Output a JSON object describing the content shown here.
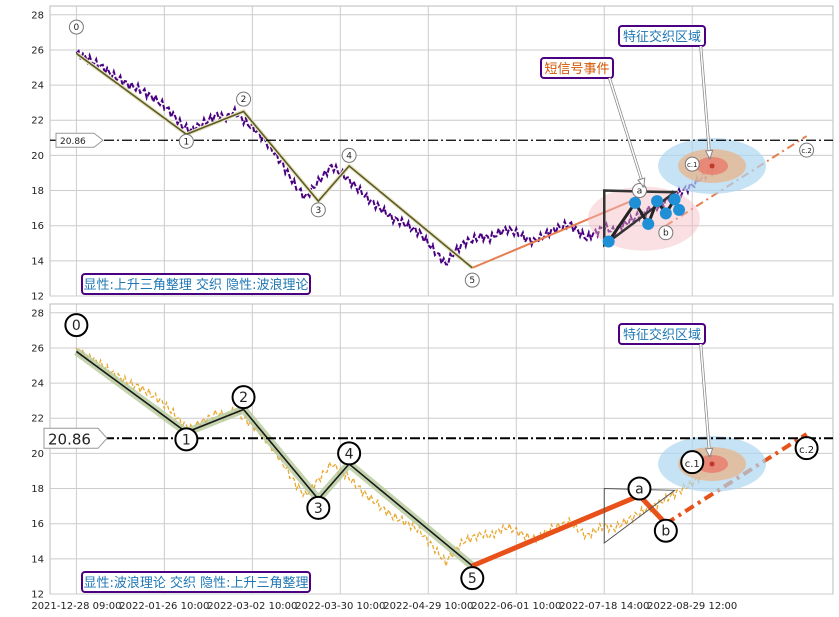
{
  "chart_data": [
    {
      "type": "line",
      "panel": "top",
      "ylim": [
        12,
        28.5
      ],
      "yticks": [
        12,
        14,
        16,
        18,
        20,
        22,
        24,
        26,
        28
      ],
      "grid": true,
      "hline_value": 20.86,
      "hline_label": "20.86",
      "caption": "显性:上升三角整理 交织 隐性:波浪理论",
      "caption_color": "#1f77b4",
      "price_color": "#4b0082",
      "price_series": [
        [
          0,
          25.8
        ],
        [
          2,
          25.6
        ],
        [
          4,
          25.3
        ],
        [
          6,
          25.0
        ],
        [
          8,
          24.6
        ],
        [
          10,
          24.3
        ],
        [
          12,
          24.0
        ],
        [
          14,
          23.8
        ],
        [
          16,
          23.5
        ],
        [
          18,
          23.2
        ],
        [
          20,
          22.8
        ],
        [
          22,
          22.3
        ],
        [
          24,
          21.7
        ],
        [
          26,
          21.4
        ],
        [
          28,
          21.7
        ],
        [
          30,
          22.0
        ],
        [
          32,
          22.3
        ],
        [
          34,
          22.1
        ],
        [
          36,
          22.5
        ],
        [
          38,
          22.0
        ],
        [
          40,
          21.6
        ],
        [
          42,
          21.1
        ],
        [
          44,
          20.5
        ],
        [
          46,
          19.8
        ],
        [
          48,
          19.0
        ],
        [
          50,
          18.2
        ],
        [
          52,
          17.6
        ],
        [
          54,
          18.2
        ],
        [
          56,
          18.8
        ],
        [
          58,
          19.4
        ],
        [
          60,
          19.0
        ],
        [
          62,
          18.6
        ],
        [
          64,
          18.1
        ],
        [
          66,
          17.6
        ],
        [
          68,
          17.2
        ],
        [
          70,
          16.8
        ],
        [
          72,
          16.4
        ],
        [
          74,
          16.2
        ],
        [
          76,
          15.9
        ],
        [
          78,
          15.6
        ],
        [
          80,
          15.0
        ],
        [
          82,
          14.4
        ],
        [
          84,
          13.8
        ],
        [
          86,
          14.5
        ],
        [
          88,
          15.0
        ],
        [
          90,
          15.2
        ],
        [
          92,
          15.4
        ],
        [
          94,
          15.3
        ],
        [
          96,
          15.6
        ],
        [
          98,
          15.8
        ],
        [
          100,
          15.6
        ],
        [
          102,
          15.3
        ],
        [
          104,
          15.1
        ],
        [
          106,
          15.4
        ],
        [
          108,
          15.7
        ],
        [
          110,
          15.9
        ],
        [
          112,
          16.1
        ],
        [
          114,
          15.7
        ],
        [
          116,
          15.3
        ],
        [
          118,
          15.6
        ],
        [
          120,
          15.9
        ],
        [
          122,
          15.7
        ],
        [
          124,
          16.0
        ],
        [
          126,
          16.3
        ],
        [
          128,
          16.6
        ],
        [
          130,
          16.9
        ],
        [
          132,
          17.1
        ],
        [
          134,
          17.4
        ],
        [
          136,
          17.7
        ],
        [
          138,
          18.0
        ],
        [
          140,
          18.3
        ],
        [
          142,
          18.7
        ],
        [
          144,
          19.1
        ],
        [
          146,
          19.3
        ]
      ],
      "wave_lines": [
        {
          "name": "wave",
          "points": [
            [
              0,
              25.8
            ],
            [
              25,
              21.2
            ],
            [
              38,
              22.5
            ],
            [
              55,
              17.4
            ],
            [
              62,
              19.4
            ],
            [
              90,
              13.6
            ]
          ],
          "color": "#5a5a2a"
        }
      ],
      "projection": {
        "points": [
          [
            90,
            13.6
          ],
          [
            128,
            17.6
          ],
          [
            134,
            16.0
          ],
          [
            166,
            21.1
          ]
        ],
        "color": "#e67e50"
      },
      "wave_labels": [
        {
          "label": "0",
          "x": 0,
          "y": 27.3
        },
        {
          "label": "1",
          "x": 25,
          "y": 20.8
        },
        {
          "label": "2",
          "x": 38,
          "y": 23.2
        },
        {
          "label": "3",
          "x": 55,
          "y": 16.9
        },
        {
          "label": "4",
          "x": 62,
          "y": 20.0
        },
        {
          "label": "5",
          "x": 90,
          "y": 12.9
        },
        {
          "label": "a",
          "x": 128,
          "y": 18.0
        },
        {
          "label": "b",
          "x": 134,
          "y": 15.6
        },
        {
          "label": "c.1",
          "x": 140,
          "y": 19.5
        },
        {
          "label": "c.2",
          "x": 166,
          "y": 20.3
        }
      ],
      "triangle": [
        [
          120,
          18.0
        ],
        [
          136,
          17.9
        ],
        [
          120,
          14.9
        ]
      ],
      "signal_points": [
        [
          121,
          15.1
        ],
        [
          127,
          17.3
        ],
        [
          130,
          16.1
        ],
        [
          132,
          17.4
        ],
        [
          134,
          16.7
        ],
        [
          136,
          17.5
        ],
        [
          137,
          16.9
        ]
      ],
      "annotations": [
        {
          "text": "短信号事件",
          "color": "#d35400",
          "target": [
            129,
            18.2
          ]
        },
        {
          "text": "特征交织区域",
          "color": "#1f77b4",
          "target": [
            144,
            19.8
          ]
        }
      ]
    },
    {
      "type": "line",
      "panel": "bottom",
      "ylim": [
        12,
        28.5
      ],
      "yticks": [
        12,
        14,
        16,
        18,
        20,
        22,
        24,
        26,
        28
      ],
      "grid": true,
      "hline_value": 20.86,
      "hline_label": "20.86",
      "caption": "显性:波浪理论 交织 隐性:上升三角整理",
      "caption_color": "#1f77b4",
      "price_color": "#e8a830",
      "price_series": "same-as-top",
      "wave_lines": [
        {
          "name": "wave",
          "points": [
            [
              0,
              25.8
            ],
            [
              25,
              21.2
            ],
            [
              38,
              22.5
            ],
            [
              55,
              17.4
            ],
            [
              62,
              19.4
            ],
            [
              90,
              13.6
            ]
          ],
          "color": "#1a1a1a"
        }
      ],
      "projection": {
        "points": [
          [
            90,
            13.6
          ],
          [
            128,
            17.6
          ],
          [
            134,
            16.0
          ],
          [
            166,
            21.1
          ]
        ],
        "color": "#e8521a"
      },
      "wave_labels": [
        {
          "label": "0",
          "x": 0,
          "y": 27.3
        },
        {
          "label": "1",
          "x": 25,
          "y": 20.8
        },
        {
          "label": "2",
          "x": 38,
          "y": 23.2
        },
        {
          "label": "3",
          "x": 55,
          "y": 16.9
        },
        {
          "label": "4",
          "x": 62,
          "y": 20.0
        },
        {
          "label": "5",
          "x": 90,
          "y": 12.9
        },
        {
          "label": "a",
          "x": 128,
          "y": 18.0
        },
        {
          "label": "b",
          "x": 134,
          "y": 15.6
        },
        {
          "label": "c.1",
          "x": 140,
          "y": 19.5
        },
        {
          "label": "c.2",
          "x": 166,
          "y": 20.3
        }
      ],
      "triangle": [
        [
          120,
          18.0
        ],
        [
          136,
          17.9
        ],
        [
          120,
          14.9
        ]
      ],
      "annotations": [
        {
          "text": "特征交织区域",
          "color": "#1f77b4",
          "target": [
            144,
            19.8
          ]
        }
      ]
    }
  ],
  "x_tick_labels": [
    "2021-12-28 09:00",
    "2022-01-26 10:00",
    "2022-03-02 10:00",
    "2022-03-30 10:00",
    "2022-04-29 10:00",
    "2022-06-01 10:00",
    "2022-07-18 14:00",
    "2022-08-29 12:00"
  ],
  "x_tick_positions": [
    0,
    20,
    40,
    60,
    80,
    100,
    120,
    140
  ],
  "xlim": [
    -6,
    172
  ]
}
